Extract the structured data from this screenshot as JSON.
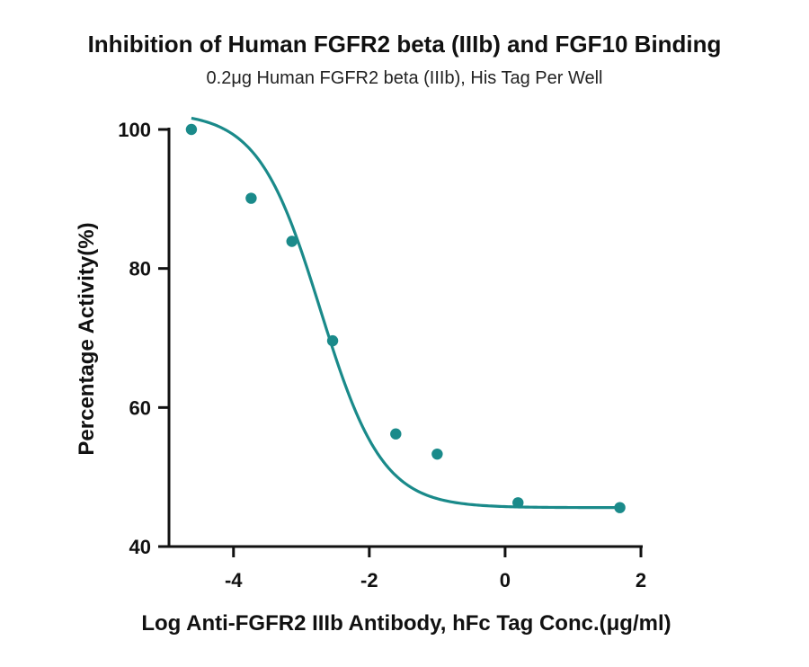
{
  "chart_data": {
    "type": "scatter",
    "title": "Inhibition of Human FGFR2 beta (IIIb) and FGF10 Binding",
    "subtitle": "0.2μg Human FGFR2 beta (IIIb), His Tag Per Well",
    "xlabel": "Log Anti-FGFR2 IIIb Antibody, hFc Tag Conc.(μg/ml)",
    "ylabel": "Percentage Activity(%)",
    "xlim": [
      -4.95,
      2.0
    ],
    "ylim": [
      40,
      100
    ],
    "xticks": [
      -4,
      -2,
      0,
      2
    ],
    "xtick_labels": [
      "-4",
      "-2",
      "0",
      "2"
    ],
    "yticks": [
      40,
      60,
      80,
      100
    ],
    "ytick_labels": [
      "40",
      "60",
      "80",
      "100"
    ],
    "grid": false,
    "color": "#1a8a8a",
    "series": [
      {
        "points": [
          {
            "x": -4.62,
            "y": 100.0
          },
          {
            "x": -3.74,
            "y": 90.1
          },
          {
            "x": -3.14,
            "y": 83.9
          },
          {
            "x": -2.54,
            "y": 69.6
          },
          {
            "x": -1.61,
            "y": 56.2
          },
          {
            "x": -1.0,
            "y": 53.3
          },
          {
            "x": 0.19,
            "y": 46.3
          },
          {
            "x": 1.69,
            "y": 45.6
          }
        ],
        "fit": {
          "model": "4PL",
          "top": 102.5,
          "bottom": 45.6,
          "logIC50": -2.72,
          "hill": -0.95
        }
      }
    ]
  }
}
